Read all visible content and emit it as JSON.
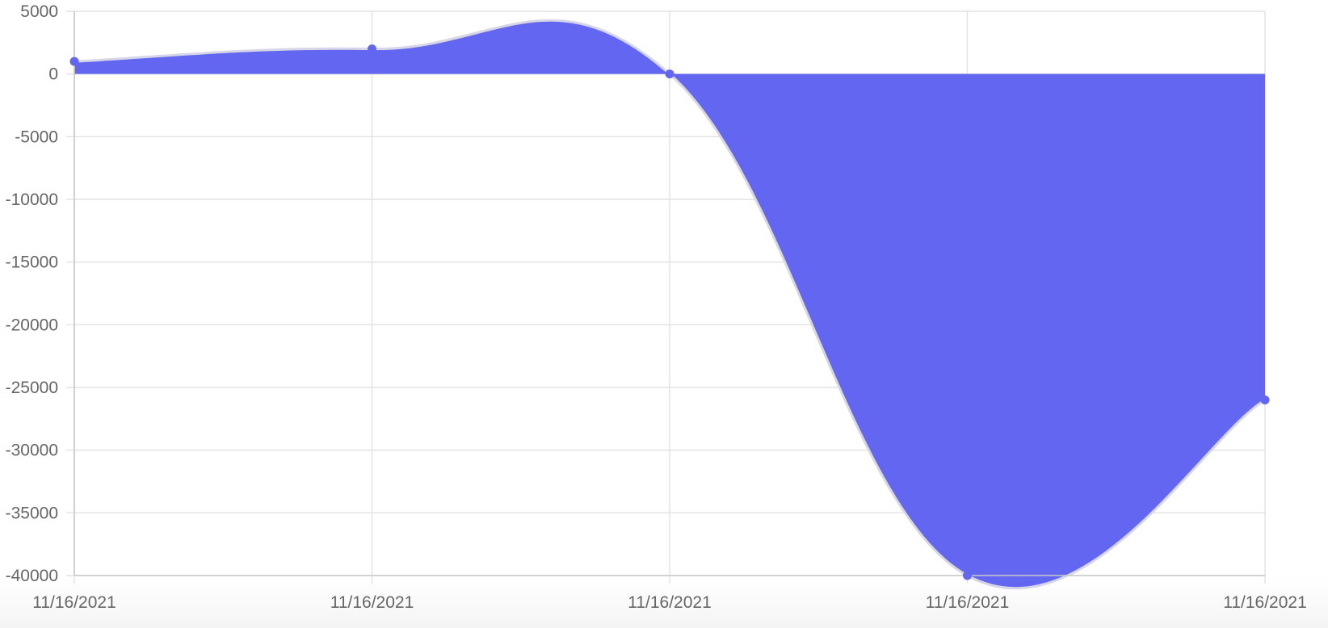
{
  "chart_data": {
    "type": "area",
    "categories": [
      "11/16/2021",
      "11/16/2021",
      "11/16/2021",
      "11/16/2021",
      "11/16/2021"
    ],
    "series": [
      {
        "values": [
          1000,
          2000,
          0,
          -40000,
          -26000
        ]
      }
    ],
    "ylim": [
      -40000,
      5000
    ],
    "yticks": [
      5000,
      0,
      -5000,
      -10000,
      -15000,
      -20000,
      -25000,
      -30000,
      -35000,
      -40000
    ],
    "title": "",
    "xlabel": "",
    "ylabel": "",
    "grid": true,
    "legend": "none",
    "smooth": true,
    "fill": "origin",
    "colors": {
      "fill": "#6366f1",
      "line": "#d6d6e8",
      "point": "#6366f1",
      "grid": "#e2e2e2",
      "tick_text": "#666666"
    }
  }
}
